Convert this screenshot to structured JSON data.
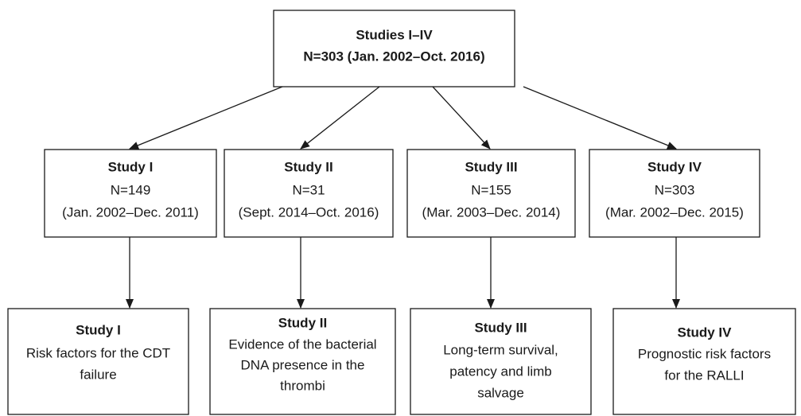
{
  "top": {
    "title": "Studies I–IV",
    "lines": [
      "N=303 (Jan. 2002–Oct. 2016)"
    ]
  },
  "studies": [
    {
      "title": "Study I",
      "lines": [
        "N=149",
        "(Jan. 2002–Dec. 2011)"
      ]
    },
    {
      "title": "Study II",
      "lines": [
        "N=31",
        "(Sept. 2014–Oct. 2016)"
      ]
    },
    {
      "title": "Study III",
      "lines": [
        "N=155",
        "(Mar. 2003–Dec. 2014)"
      ]
    },
    {
      "title": "Study IV",
      "lines": [
        "N=303",
        "(Mar. 2002–Dec. 2015)"
      ]
    }
  ],
  "outcomes": [
    {
      "title": "Study I",
      "lines": [
        "Risk factors for the CDT",
        "failure"
      ]
    },
    {
      "title": "Study II",
      "lines": [
        "Evidence of the bacterial",
        "DNA presence in the",
        "thrombi"
      ]
    },
    {
      "title": "Study III",
      "lines": [
        "Long-term survival,",
        "patency and limb",
        "salvage"
      ]
    },
    {
      "title": "Study IV",
      "lines": [
        "Prognostic risk factors",
        "for the RALLI"
      ]
    }
  ]
}
